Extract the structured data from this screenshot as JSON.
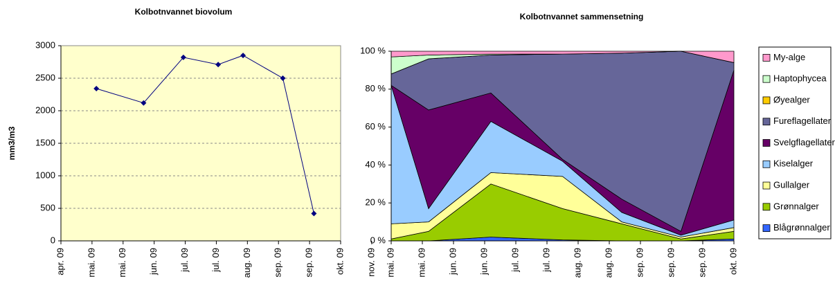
{
  "chart_data": [
    {
      "type": "line",
      "title": "Kolbotnvannet biovolum",
      "y_label": "mm3/m3",
      "x": [
        1.14,
        2.66,
        3.94,
        5.06,
        5.86,
        7.14,
        8.14
      ],
      "values": [
        2340,
        2120,
        2820,
        2710,
        2850,
        2500,
        420
      ],
      "color": "#000080",
      "xlim": [
        0,
        9
      ],
      "xticks": [
        {
          "value": 0,
          "label": "apr. 09"
        },
        {
          "value": 1,
          "label": "mai. 09"
        },
        {
          "value": 2,
          "label": "mai. 09"
        },
        {
          "value": 3,
          "label": "jun. 09"
        },
        {
          "value": 4,
          "label": "jul. 09"
        },
        {
          "value": 5,
          "label": "jul. 09"
        },
        {
          "value": 6,
          "label": "aug. 09"
        },
        {
          "value": 7,
          "label": "sep. 09"
        },
        {
          "value": 8,
          "label": "sep. 09"
        },
        {
          "value": 9,
          "label": "okt. 09"
        },
        {
          "value": 10,
          "label": "nov. 09"
        }
      ],
      "ylim": [
        0,
        3000
      ],
      "yticks": [
        0,
        500,
        1000,
        1500,
        2000,
        2500,
        3000
      ],
      "grid": true
    },
    {
      "type": "area",
      "title": "Kolbotnvannet sammensetning",
      "stacked": true,
      "x": [
        0,
        1.2,
        3.2,
        5.5,
        7.4,
        9.3,
        11
      ],
      "xlim": [
        0,
        11
      ],
      "xticks": [
        {
          "value": 0,
          "label": "mai. 09"
        },
        {
          "value": 1,
          "label": "mai. 09"
        },
        {
          "value": 2,
          "label": "jun. 09"
        },
        {
          "value": 3,
          "label": "jun. 09"
        },
        {
          "value": 4,
          "label": "jul. 09"
        },
        {
          "value": 5,
          "label": "jul. 09"
        },
        {
          "value": 6,
          "label": "aug. 09"
        },
        {
          "value": 7,
          "label": "aug. 09"
        },
        {
          "value": 8,
          "label": "sep. 09"
        },
        {
          "value": 9,
          "label": "sep. 09"
        },
        {
          "value": 10,
          "label": "sep. 09"
        },
        {
          "value": 11,
          "label": "okt. 09"
        }
      ],
      "ylim": [
        0,
        100
      ],
      "yticks": [
        {
          "value": 0,
          "label": "0 %"
        },
        {
          "value": 20,
          "label": "20 %"
        },
        {
          "value": 40,
          "label": "40 %"
        },
        {
          "value": 60,
          "label": "60 %"
        },
        {
          "value": 80,
          "label": "80 %"
        },
        {
          "value": 100,
          "label": "100 %"
        }
      ],
      "legend": "right",
      "series": [
        {
          "name": "Blågrønnalger",
          "color": "#3366ff",
          "values": [
            0,
            0,
            2,
            0.5,
            0,
            0,
            1
          ]
        },
        {
          "name": "Grønnalger",
          "color": "#99cc00",
          "values": [
            1,
            5,
            28,
            16.5,
            9,
            1,
            4
          ]
        },
        {
          "name": "Gullalger",
          "color": "#ffff99",
          "values": [
            8,
            5,
            6,
            17,
            1,
            1,
            2
          ]
        },
        {
          "name": "Kiselalger",
          "color": "#99ccff",
          "values": [
            73,
            7,
            27,
            8,
            5,
            1,
            4
          ]
        },
        {
          "name": "Svelgflagellater",
          "color": "#660066",
          "values": [
            0,
            52,
            15,
            1,
            7,
            2,
            79
          ]
        },
        {
          "name": "Fureflagellater",
          "color": "#666699",
          "values": [
            6,
            27,
            20,
            55.5,
            77,
            95,
            4
          ]
        },
        {
          "name": "Øyealger",
          "color": "#ffcc00",
          "values": [
            0,
            0,
            0,
            0,
            0,
            0,
            0
          ]
        },
        {
          "name": "Haptophycea",
          "color": "#ccffcc",
          "values": [
            9,
            2,
            0.5,
            0,
            0,
            0,
            0
          ]
        },
        {
          "name": "My-alge",
          "color": "#ff99cc",
          "values": [
            3,
            2,
            1.5,
            1.5,
            1,
            0,
            6
          ]
        }
      ]
    }
  ]
}
